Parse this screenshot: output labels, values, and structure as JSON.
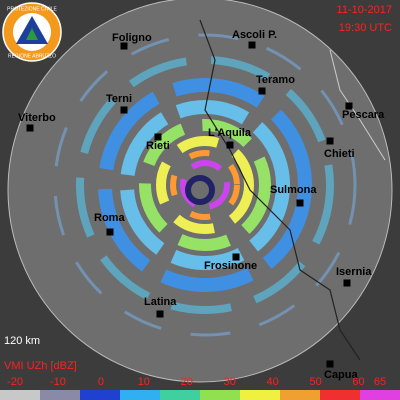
{
  "logo": {
    "top": "PROTEZIONE CIVILE",
    "bottom": "REGIONE ABRUZZO"
  },
  "header": {
    "date": "11-10-2017",
    "time": "19:30 UTC"
  },
  "cities": [
    {
      "label": "Foligno"
    },
    {
      "label": "Ascoli P."
    },
    {
      "label": "Teramo"
    },
    {
      "label": "Terni"
    },
    {
      "label": "Viterbo"
    },
    {
      "label": "Pescara"
    },
    {
      "label": "Rieti"
    },
    {
      "label": "L'Aquila"
    },
    {
      "label": "Chieti"
    },
    {
      "label": "Sulmona"
    },
    {
      "label": "Roma"
    },
    {
      "label": "Frosinone"
    },
    {
      "label": "Isernia"
    },
    {
      "label": "Latina"
    },
    {
      "label": "Capua"
    }
  ],
  "scale": {
    "range": "120 km"
  },
  "legend": {
    "title": "VMI UZh [dBZ]",
    "ticks": [
      -20,
      -10,
      0,
      10,
      20,
      30,
      40,
      50,
      60,
      65
    ]
  }
}
